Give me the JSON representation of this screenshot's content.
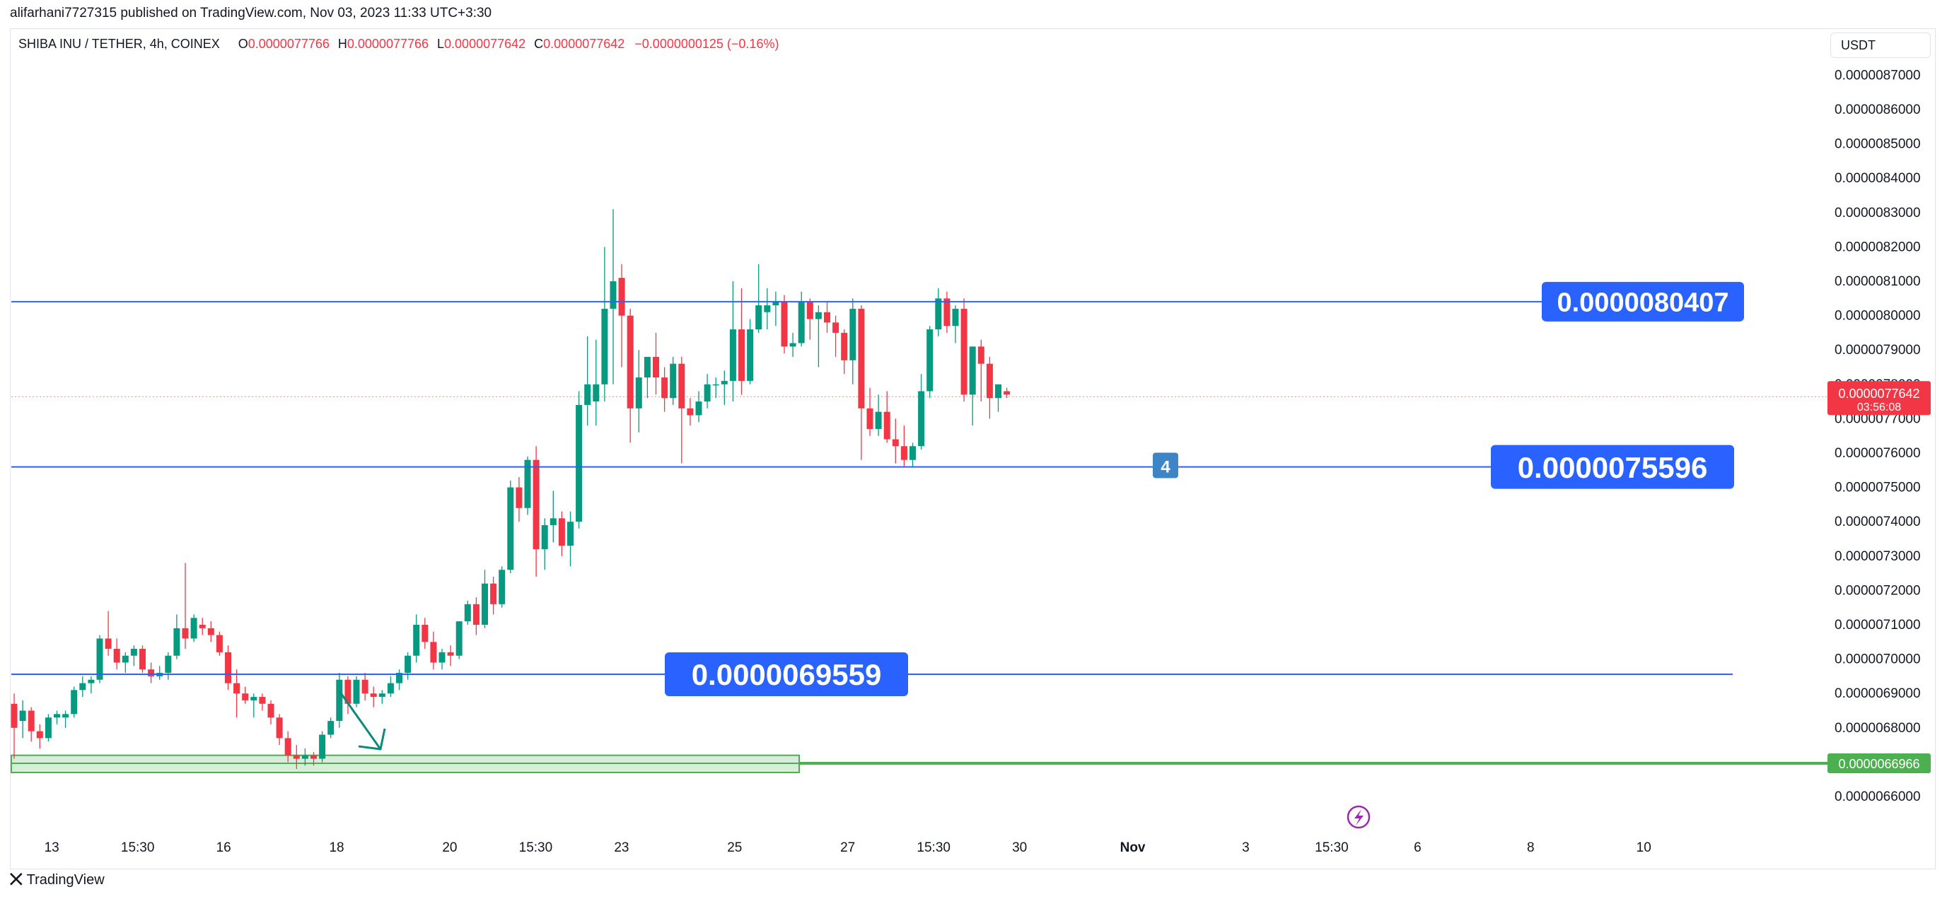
{
  "header": {
    "publisher_line": "alifarhani7727315 published on TradingView.com, Nov 03, 2023 11:33 UTC+3:30",
    "symbol": "SHIBA INU / TETHER, 4h, COINEX",
    "ohlc": [
      {
        "label": "O",
        "value": "0.0000077766"
      },
      {
        "label": "H",
        "value": "0.0000077766"
      },
      {
        "label": "L",
        "value": "0.0000077642"
      },
      {
        "label": "C",
        "value": "0.0000077642"
      }
    ],
    "change": "−0.0000000125 (−0.16%)",
    "currency_button": "USDT"
  },
  "footer": {
    "brand": "TradingView"
  },
  "colors": {
    "up": "#089981",
    "down": "#f23645",
    "line": "#2962ff",
    "zone": "#4caf50",
    "label_bg": "#2962ff"
  },
  "chart_data": {
    "type": "candlestick",
    "ylim": [
      6.55e-06,
      8.8e-06
    ],
    "x_range": [
      0,
      80
    ],
    "y_ticks": [
      {
        "value": 8.7e-06,
        "label": "0.0000087000"
      },
      {
        "value": 8.6e-06,
        "label": "0.0000086000"
      },
      {
        "value": 8.5e-06,
        "label": "0.0000085000"
      },
      {
        "value": 8.4e-06,
        "label": "0.0000084000"
      },
      {
        "value": 8.3e-06,
        "label": "0.0000083000"
      },
      {
        "value": 8.2e-06,
        "label": "0.0000082000"
      },
      {
        "value": 8.1e-06,
        "label": "0.0000081000"
      },
      {
        "value": 8e-06,
        "label": "0.0000080000"
      },
      {
        "value": 7.9e-06,
        "label": "0.0000079000"
      },
      {
        "value": 7.8e-06,
        "label": "0.0000078000"
      },
      {
        "value": 7.7e-06,
        "label": "0.0000077000"
      },
      {
        "value": 7.6e-06,
        "label": "0.0000076000"
      },
      {
        "value": 7.5e-06,
        "label": "0.0000075000"
      },
      {
        "value": 7.4e-06,
        "label": "0.0000074000"
      },
      {
        "value": 7.3e-06,
        "label": "0.0000073000"
      },
      {
        "value": 7.2e-06,
        "label": "0.0000072000"
      },
      {
        "value": 7.1e-06,
        "label": "0.0000071000"
      },
      {
        "value": 7e-06,
        "label": "0.0000070000"
      },
      {
        "value": 6.9e-06,
        "label": "0.0000069000"
      },
      {
        "value": 6.8e-06,
        "label": "0.0000068000"
      },
      {
        "value": 6.6e-06,
        "label": "0.0000066000"
      }
    ],
    "x_ticks": [
      {
        "x": 1.6,
        "label": "13"
      },
      {
        "x": 5.4,
        "label": "15:30"
      },
      {
        "x": 9.2,
        "label": "16"
      },
      {
        "x": 14.2,
        "label": "18"
      },
      {
        "x": 19.2,
        "label": "20"
      },
      {
        "x": 23.0,
        "label": "15:30"
      },
      {
        "x": 26.8,
        "label": "23"
      },
      {
        "x": 31.8,
        "label": "25"
      },
      {
        "x": 36.8,
        "label": "27"
      },
      {
        "x": 40.6,
        "label": "15:30"
      },
      {
        "x": 44.4,
        "label": "30"
      },
      {
        "x": 49.4,
        "label": "Nov",
        "bold": true
      },
      {
        "x": 54.4,
        "label": "3"
      },
      {
        "x": 58.2,
        "label": "15:30"
      },
      {
        "x": 62.0,
        "label": "6"
      },
      {
        "x": 67.0,
        "label": "8"
      },
      {
        "x": 72.0,
        "label": "10"
      }
    ],
    "candles": [
      [
        6.87e-06,
        6.9e-06,
        6.71e-06,
        6.8e-06
      ],
      [
        6.82e-06,
        6.88e-06,
        6.77e-06,
        6.85e-06
      ],
      [
        6.85e-06,
        6.86e-06,
        6.76e-06,
        6.79e-06
      ],
      [
        6.79e-06,
        6.81e-06,
        6.74e-06,
        6.77e-06
      ],
      [
        6.77e-06,
        6.84e-06,
        6.76e-06,
        6.83e-06
      ],
      [
        6.83e-06,
        6.85e-06,
        6.81e-06,
        6.84e-06
      ],
      [
        6.83e-06,
        6.85e-06,
        6.8e-06,
        6.84e-06
      ],
      [
        6.84e-06,
        6.92e-06,
        6.83e-06,
        6.91e-06
      ],
      [
        6.91e-06,
        6.95e-06,
        6.89e-06,
        6.93e-06
      ],
      [
        6.93e-06,
        6.95e-06,
        6.9e-06,
        6.94e-06
      ],
      [
        6.94e-06,
        7.07e-06,
        6.93e-06,
        7.06e-06
      ],
      [
        7.06e-06,
        7.14e-06,
        7.01e-06,
        7.03e-06
      ],
      [
        7.03e-06,
        7.06e-06,
        6.97e-06,
        6.99e-06
      ],
      [
        6.99e-06,
        7.02e-06,
        6.96e-06,
        7.01e-06
      ],
      [
        7.01e-06,
        7.04e-06,
        6.98e-06,
        7.03e-06
      ],
      [
        7.03e-06,
        7.04e-06,
        6.96e-06,
        6.97e-06
      ],
      [
        6.97e-06,
        6.99e-06,
        6.93e-06,
        6.95e-06
      ],
      [
        6.95e-06,
        6.98e-06,
        6.94e-06,
        6.96e-06
      ],
      [
        6.96e-06,
        7.02e-06,
        6.94e-06,
        7.01e-06
      ],
      [
        7.01e-06,
        7.13e-06,
        7e-06,
        7.09e-06
      ],
      [
        7.09e-06,
        7.28e-06,
        7.03e-06,
        7.06e-06
      ],
      [
        7.06e-06,
        7.13e-06,
        7.05e-06,
        7.12e-06
      ],
      [
        7.1e-06,
        7.12e-06,
        7.07e-06,
        7.09e-06
      ],
      [
        7.09e-06,
        7.11e-06,
        7.05e-06,
        7.07e-06
      ],
      [
        7.07e-06,
        7.08e-06,
        7.01e-06,
        7.02e-06
      ],
      [
        7.02e-06,
        7.04e-06,
        6.91e-06,
        6.93e-06
      ],
      [
        6.93e-06,
        6.97e-06,
        6.83e-06,
        6.9e-06
      ],
      [
        6.9e-06,
        6.92e-06,
        6.87e-06,
        6.88e-06
      ],
      [
        6.88e-06,
        6.9e-06,
        6.83e-06,
        6.89e-06
      ],
      [
        6.89e-06,
        6.9e-06,
        6.85e-06,
        6.87e-06
      ],
      [
        6.87e-06,
        6.88e-06,
        6.81e-06,
        6.83e-06
      ],
      [
        6.83e-06,
        6.84e-06,
        6.75e-06,
        6.77e-06
      ],
      [
        6.77e-06,
        6.79e-06,
        6.7e-06,
        6.72e-06
      ],
      [
        6.72e-06,
        6.75e-06,
        6.68e-06,
        6.71e-06
      ],
      [
        6.71e-06,
        6.74e-06,
        6.69e-06,
        6.72e-06
      ],
      [
        6.72e-06,
        6.73e-06,
        6.69e-06,
        6.71e-06
      ],
      [
        6.71e-06,
        6.79e-06,
        6.7e-06,
        6.78e-06
      ],
      [
        6.78e-06,
        6.83e-06,
        6.77e-06,
        6.82e-06
      ],
      [
        6.82e-06,
        6.96e-06,
        6.8e-06,
        6.94e-06
      ],
      [
        6.94e-06,
        6.95e-06,
        6.84e-06,
        6.87e-06
      ],
      [
        6.87e-06,
        6.95e-06,
        6.86e-06,
        6.94e-06
      ],
      [
        6.94e-06,
        6.96e-06,
        6.88e-06,
        6.9e-06
      ],
      [
        6.9e-06,
        6.92e-06,
        6.86e-06,
        6.89e-06
      ],
      [
        6.89e-06,
        6.91e-06,
        6.87e-06,
        6.9e-06
      ],
      [
        6.9e-06,
        6.95e-06,
        6.89e-06,
        6.93e-06
      ],
      [
        6.93e-06,
        6.97e-06,
        6.91e-06,
        6.96e-06
      ],
      [
        6.96e-06,
        7.02e-06,
        6.94e-06,
        7.01e-06
      ],
      [
        7.01e-06,
        7.13e-06,
        6.99e-06,
        7.1e-06
      ],
      [
        7.1e-06,
        7.12e-06,
        7.03e-06,
        7.05e-06
      ],
      [
        7.05e-06,
        7.08e-06,
        6.97e-06,
        6.99e-06
      ],
      [
        6.99e-06,
        7.03e-06,
        6.97e-06,
        7.02e-06
      ],
      [
        7.02e-06,
        7.04e-06,
        6.98e-06,
        7.01e-06
      ],
      [
        7.01e-06,
        7.11e-06,
        7e-06,
        7.11e-06
      ],
      [
        7.11e-06,
        7.17e-06,
        7.1e-06,
        7.16e-06
      ],
      [
        7.16e-06,
        7.18e-06,
        7.07e-06,
        7.1e-06
      ],
      [
        7.1e-06,
        7.26e-06,
        7.09e-06,
        7.22e-06
      ],
      [
        7.22e-06,
        7.24e-06,
        7.13e-06,
        7.16e-06
      ],
      [
        7.16e-06,
        7.27e-06,
        7.15e-06,
        7.26e-06
      ],
      [
        7.26e-06,
        7.52e-06,
        7.25e-06,
        7.5e-06
      ],
      [
        7.5e-06,
        7.53e-06,
        7.4e-06,
        7.44e-06
      ],
      [
        7.44e-06,
        7.59e-06,
        7.42e-06,
        7.58e-06
      ],
      [
        7.58e-06,
        7.62e-06,
        7.24e-06,
        7.32e-06
      ],
      [
        7.32e-06,
        7.41e-06,
        7.26e-06,
        7.39e-06
      ],
      [
        7.39e-06,
        7.49e-06,
        7.34e-06,
        7.41e-06
      ],
      [
        7.41e-06,
        7.43e-06,
        7.3e-06,
        7.33e-06
      ],
      [
        7.33e-06,
        7.43e-06,
        7.27e-06,
        7.4e-06
      ],
      [
        7.4e-06,
        7.78e-06,
        7.38e-06,
        7.74e-06
      ],
      [
        7.74e-06,
        7.94e-06,
        7.68e-06,
        7.8e-06
      ],
      [
        7.75e-06,
        7.93e-06,
        7.68e-06,
        7.8e-06
      ],
      [
        7.8e-06,
        8.2e-06,
        7.75e-06,
        8.02e-06
      ],
      [
        8.02e-06,
        8.31e-06,
        7.8e-06,
        8.1e-06
      ],
      [
        8.11e-06,
        8.15e-06,
        7.85e-06,
        8e-06
      ],
      [
        8e-06,
        8.02e-06,
        7.63e-06,
        7.73e-06
      ],
      [
        7.73e-06,
        7.9e-06,
        7.66e-06,
        7.82e-06
      ],
      [
        7.82e-06,
        7.88e-06,
        7.76e-06,
        7.88e-06
      ],
      [
        7.88e-06,
        7.95e-06,
        7.77e-06,
        7.82e-06
      ],
      [
        7.82e-06,
        7.85e-06,
        7.72e-06,
        7.76e-06
      ],
      [
        7.76e-06,
        7.88e-06,
        7.74e-06,
        7.86e-06
      ],
      [
        7.86e-06,
        7.88e-06,
        7.57e-06,
        7.73e-06
      ],
      [
        7.73e-06,
        7.76e-06,
        7.68e-06,
        7.71e-06
      ],
      [
        7.71e-06,
        7.78e-06,
        7.69e-06,
        7.75e-06
      ],
      [
        7.75e-06,
        7.83e-06,
        7.73e-06,
        7.8e-06
      ],
      [
        7.8e-06,
        7.82e-06,
        7.76e-06,
        7.8e-06
      ],
      [
        7.8e-06,
        7.84e-06,
        7.74e-06,
        7.81e-06
      ],
      [
        7.81e-06,
        8.1e-06,
        7.75e-06,
        7.96e-06
      ],
      [
        7.96e-06,
        8.08e-06,
        7.77e-06,
        7.81e-06
      ],
      [
        7.81e-06,
        7.99e-06,
        7.8e-06,
        7.96e-06
      ],
      [
        7.96e-06,
        8.15e-06,
        7.95e-06,
        8.03e-06
      ],
      [
        8.01e-06,
        8.08e-06,
        7.96e-06,
        8.03e-06
      ],
      [
        8.03e-06,
        8.07e-06,
        7.97e-06,
        8.04e-06
      ],
      [
        8.04e-06,
        8.06e-06,
        7.89e-06,
        7.91e-06
      ],
      [
        7.91e-06,
        7.95e-06,
        7.88e-06,
        7.92e-06
      ],
      [
        7.92e-06,
        8.07e-06,
        7.91e-06,
        8.04e-06
      ],
      [
        8.04e-06,
        8.05e-06,
        7.93e-06,
        7.99e-06
      ],
      [
        7.99e-06,
        8.03e-06,
        7.85e-06,
        8.01e-06
      ],
      [
        8.01e-06,
        8.04e-06,
        7.95e-06,
        7.98e-06
      ],
      [
        7.98e-06,
        8e-06,
        7.88e-06,
        7.95e-06
      ],
      [
        7.95e-06,
        7.96e-06,
        7.83e-06,
        7.87e-06
      ],
      [
        7.87e-06,
        8.05e-06,
        7.8e-06,
        8.02e-06
      ],
      [
        8.02e-06,
        8.03e-06,
        7.58e-06,
        7.73e-06
      ],
      [
        7.73e-06,
        7.79e-06,
        7.65e-06,
        7.67e-06
      ],
      [
        7.67e-06,
        7.77e-06,
        7.65e-06,
        7.72e-06
      ],
      [
        7.72e-06,
        7.78e-06,
        7.63e-06,
        7.64e-06
      ],
      [
        7.64e-06,
        7.7e-06,
        7.57e-06,
        7.62e-06
      ],
      [
        7.62e-06,
        7.68e-06,
        7.56e-06,
        7.58e-06
      ],
      [
        7.58e-06,
        7.63e-06,
        7.56e-06,
        7.62e-06
      ],
      [
        7.62e-06,
        7.83e-06,
        7.61e-06,
        7.78e-06
      ],
      [
        7.78e-06,
        7.97e-06,
        7.76e-06,
        7.96e-06
      ],
      [
        7.96e-06,
        8.08e-06,
        7.94e-06,
        8.05e-06
      ],
      [
        8.05e-06,
        8.07e-06,
        7.95e-06,
        7.97e-06
      ],
      [
        7.97e-06,
        8.03e-06,
        7.92e-06,
        8.02e-06
      ],
      [
        8.02e-06,
        8.05e-06,
        7.75e-06,
        7.77e-06
      ],
      [
        7.77e-06,
        7.91e-06,
        7.68e-06,
        7.91e-06
      ],
      [
        7.91e-06,
        7.93e-06,
        7.75e-06,
        7.86e-06
      ],
      [
        7.86e-06,
        7.88e-06,
        7.7e-06,
        7.76e-06
      ],
      [
        7.76e-06,
        7.8e-06,
        7.72e-06,
        7.8e-06
      ],
      [
        7.78e-06,
        7.79e-06,
        7.76e-06,
        7.77e-06
      ]
    ],
    "horizontal_lines": [
      {
        "value": 8.0407e-06,
        "label": "0.0000080407"
      },
      {
        "value": 7.5596e-06,
        "label": "0.0000075596"
      },
      {
        "value": 6.9559e-06,
        "label": "0.0000069559"
      }
    ],
    "support_zone": {
      "top": 6.72e-06,
      "bottom": 6.67e-06,
      "level": 6.6966e-06,
      "label": "0.0000066966"
    },
    "last_price": {
      "value": 7.7642e-06,
      "label": "0.0000077642",
      "countdown": "03:56:08"
    },
    "marker_badge": "4"
  }
}
